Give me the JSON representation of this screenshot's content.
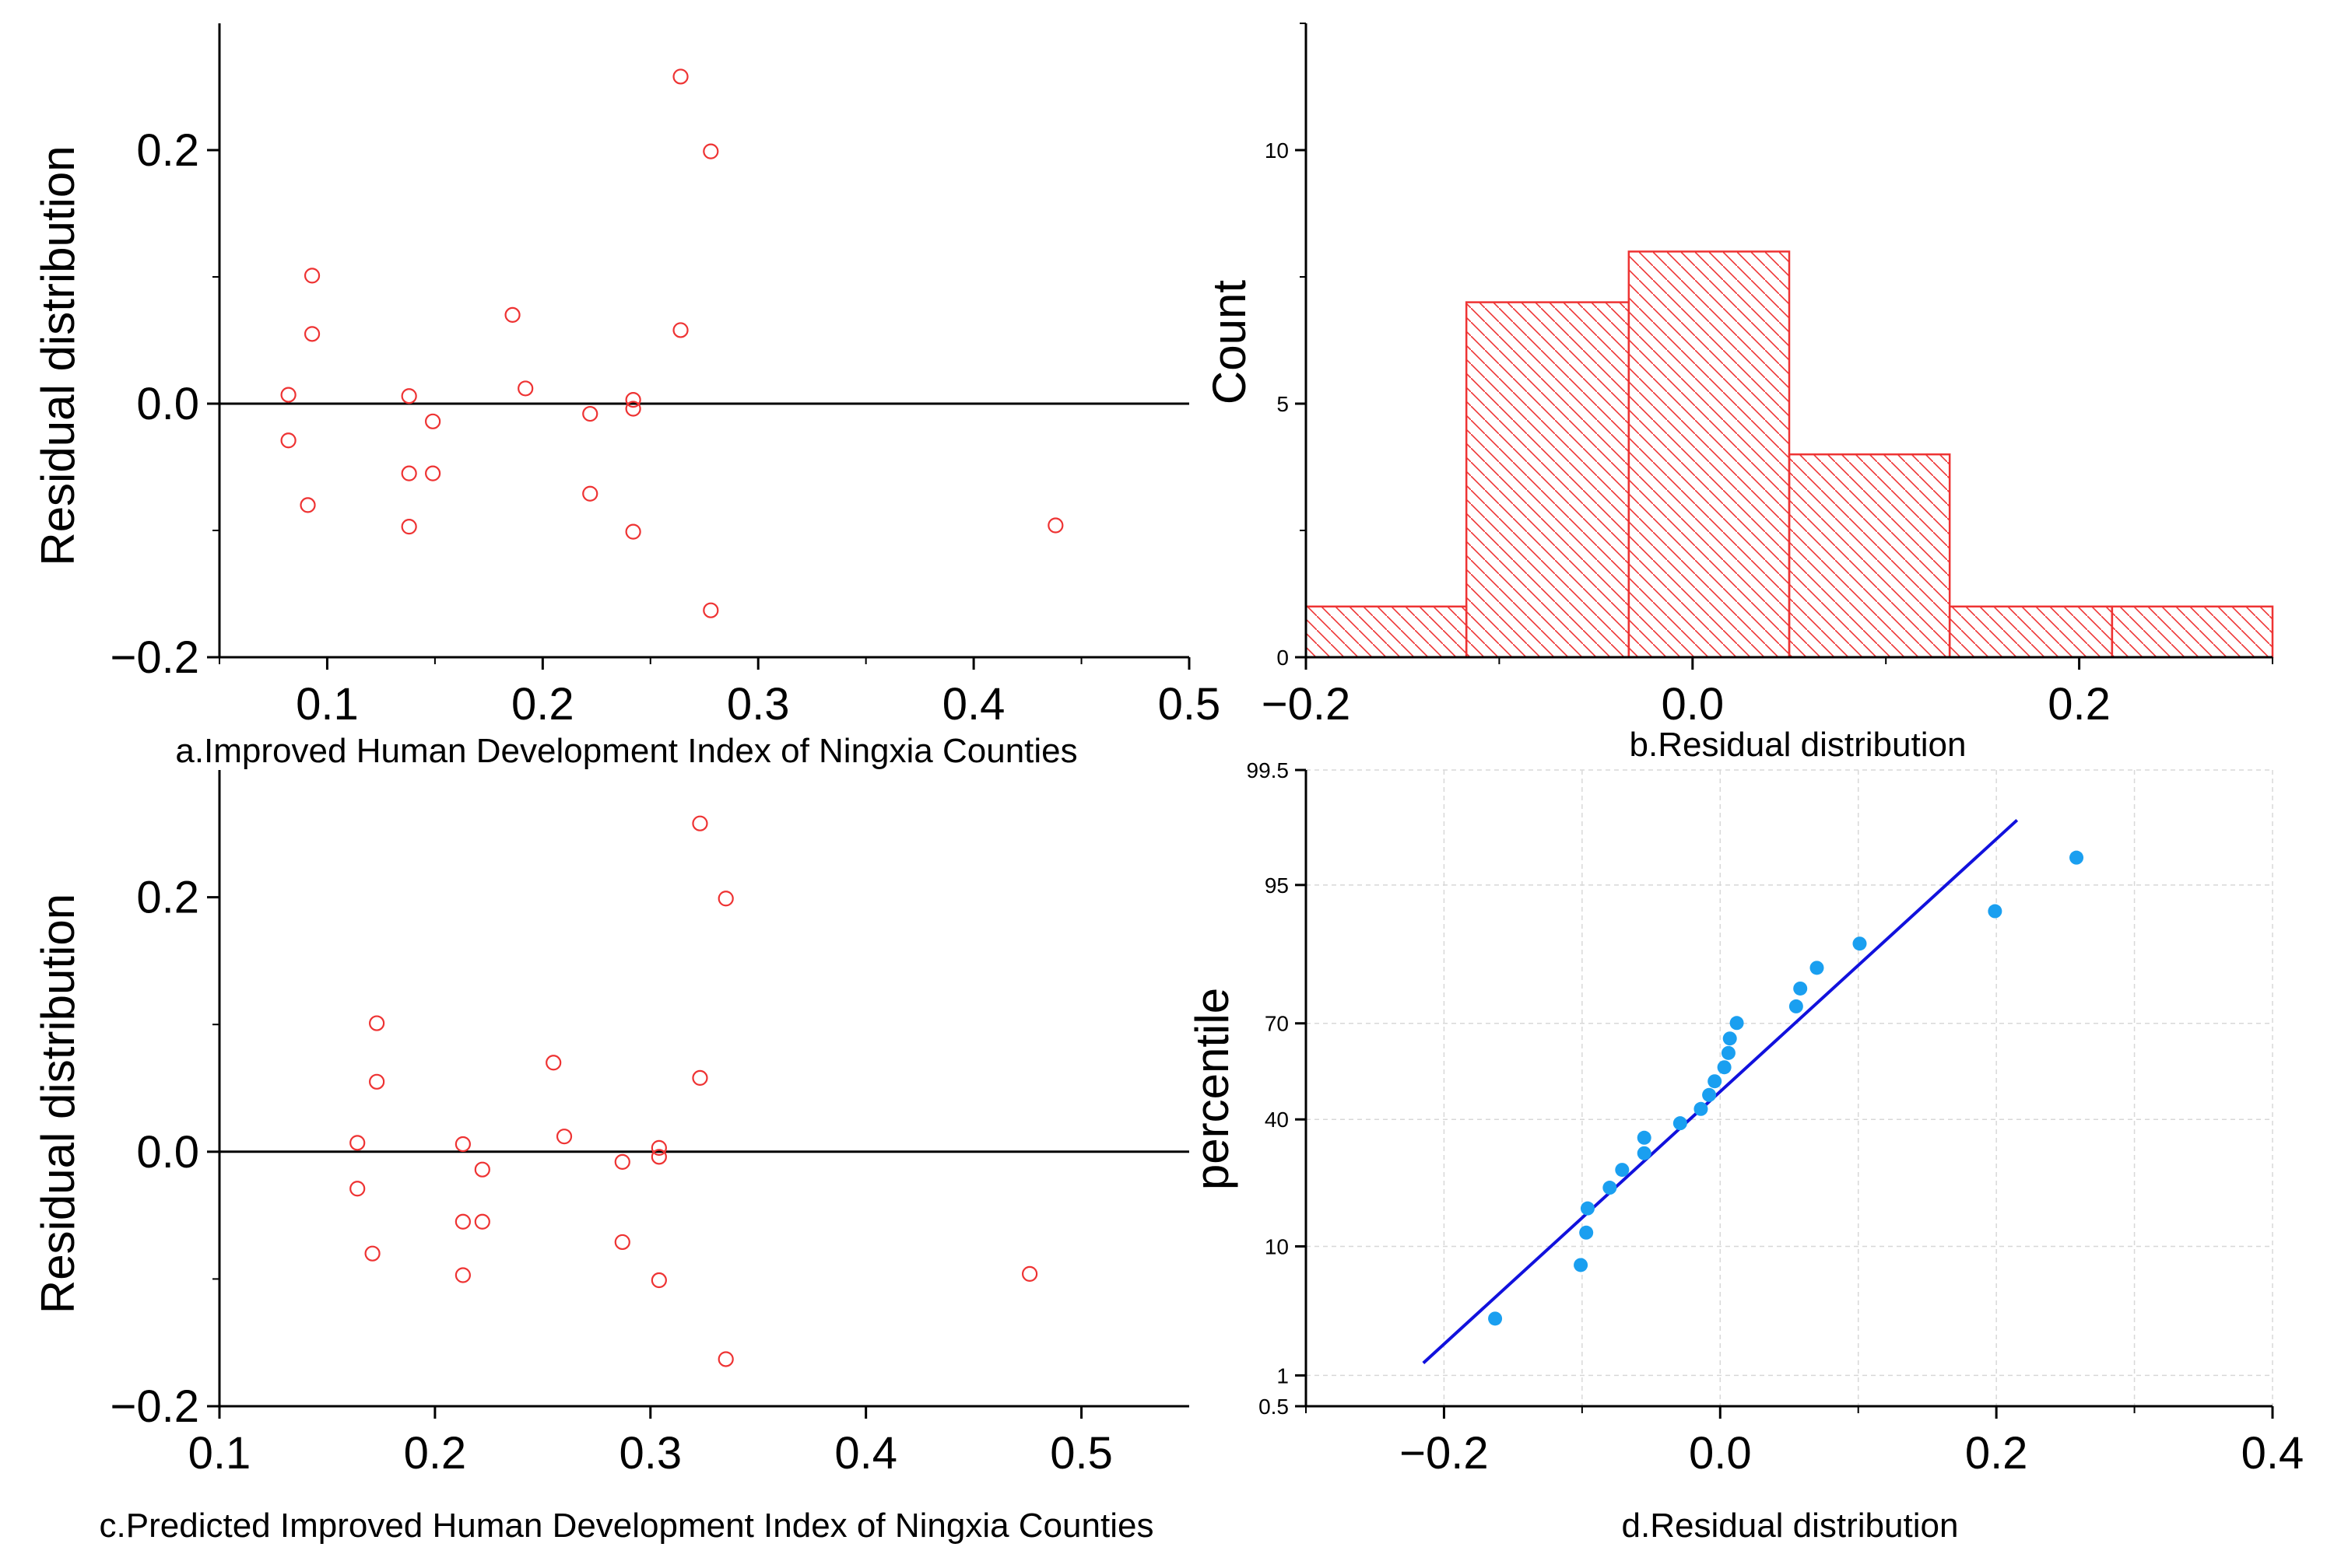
{
  "colors": {
    "scatter_marker": "#ee3333",
    "hist": "#ee3333",
    "qq_point": "#1a9ff0",
    "qq_line": "#1111dd",
    "grid": "#d8d8d8",
    "axis": "#000000"
  },
  "chart_data": [
    {
      "type": "scatter",
      "panel": "a",
      "caption": "a.Improved Human Development Index of Ningxia Counties",
      "xlabel": "a.Improved Human Development Index of Ningxia Counties",
      "ylabel": "Residual distribution",
      "xlim": [
        0.05,
        0.5
      ],
      "ylim": [
        -0.2,
        0.3
      ],
      "xticks": [
        0.1,
        0.2,
        0.3,
        0.4,
        0.5
      ],
      "xtick_labels": [
        "0.1",
        "0.2",
        "0.3",
        "0.4",
        "0.5"
      ],
      "yticks": [
        -0.2,
        0.0,
        0.2
      ],
      "ytick_labels": [
        "−0.2",
        "0.0",
        "0.2"
      ],
      "hline": 0,
      "marker": "open-circle",
      "points": [
        {
          "x": 0.082,
          "y": 0.007
        },
        {
          "x": 0.082,
          "y": -0.029
        },
        {
          "x": 0.091,
          "y": -0.08
        },
        {
          "x": 0.093,
          "y": 0.101
        },
        {
          "x": 0.093,
          "y": 0.055
        },
        {
          "x": 0.138,
          "y": 0.006
        },
        {
          "x": 0.138,
          "y": -0.055
        },
        {
          "x": 0.138,
          "y": -0.097
        },
        {
          "x": 0.149,
          "y": -0.014
        },
        {
          "x": 0.149,
          "y": -0.055
        },
        {
          "x": 0.186,
          "y": 0.07
        },
        {
          "x": 0.192,
          "y": 0.012
        },
        {
          "x": 0.222,
          "y": -0.008
        },
        {
          "x": 0.222,
          "y": -0.071
        },
        {
          "x": 0.242,
          "y": 0.003
        },
        {
          "x": 0.242,
          "y": -0.004
        },
        {
          "x": 0.242,
          "y": -0.101
        },
        {
          "x": 0.264,
          "y": 0.258
        },
        {
          "x": 0.264,
          "y": 0.058
        },
        {
          "x": 0.278,
          "y": 0.199
        },
        {
          "x": 0.278,
          "y": -0.163
        },
        {
          "x": 0.438,
          "y": -0.096
        }
      ]
    },
    {
      "type": "histogram",
      "panel": "b",
      "caption": "b.Residual distribution",
      "xlabel": "b.Residual distribution",
      "ylabel": "Count",
      "xlim": [
        -0.2,
        0.3
      ],
      "ylim": [
        0,
        12.5
      ],
      "xticks": [
        -0.2,
        0.0,
        0.2
      ],
      "xtick_labels": [
        "−0.2",
        "0.0",
        "0.2"
      ],
      "yticks": [
        0,
        5,
        10
      ],
      "ytick_labels": [
        "0",
        "5",
        "10"
      ],
      "bins": [
        {
          "x0": -0.2,
          "x1": -0.117,
          "count": 1
        },
        {
          "x0": -0.117,
          "x1": -0.033,
          "count": 7
        },
        {
          "x0": -0.033,
          "x1": 0.05,
          "count": 8
        },
        {
          "x0": 0.05,
          "x1": 0.133,
          "count": 4
        },
        {
          "x0": 0.133,
          "x1": 0.217,
          "count": 1
        },
        {
          "x0": 0.217,
          "x1": 0.3,
          "count": 1
        }
      ]
    },
    {
      "type": "scatter",
      "panel": "c",
      "caption": "c.Predicted Improved Human Development Index of Ningxia Counties",
      "xlabel": "c.Predicted Improved Human Development Index of Ningxia Counties",
      "ylabel": "Residual distribution",
      "xlim": [
        0.1,
        0.55
      ],
      "ylim": [
        -0.2,
        0.3
      ],
      "xticks": [
        0.1,
        0.2,
        0.3,
        0.4,
        0.5
      ],
      "xtick_labels": [
        "0.1",
        "0.2",
        "0.3",
        "0.4",
        "0.5"
      ],
      "yticks": [
        -0.2,
        0.0,
        0.2
      ],
      "ytick_labels": [
        "−0.2",
        "0.0",
        "0.2"
      ],
      "hline": 0,
      "marker": "open-circle",
      "points": [
        {
          "x": 0.164,
          "y": 0.007
        },
        {
          "x": 0.164,
          "y": -0.029
        },
        {
          "x": 0.171,
          "y": -0.08
        },
        {
          "x": 0.173,
          "y": 0.101
        },
        {
          "x": 0.173,
          "y": 0.055
        },
        {
          "x": 0.213,
          "y": 0.006
        },
        {
          "x": 0.213,
          "y": -0.055
        },
        {
          "x": 0.213,
          "y": -0.097
        },
        {
          "x": 0.222,
          "y": -0.014
        },
        {
          "x": 0.222,
          "y": -0.055
        },
        {
          "x": 0.255,
          "y": 0.07
        },
        {
          "x": 0.26,
          "y": 0.012
        },
        {
          "x": 0.287,
          "y": -0.008
        },
        {
          "x": 0.287,
          "y": -0.071
        },
        {
          "x": 0.304,
          "y": 0.003
        },
        {
          "x": 0.304,
          "y": -0.004
        },
        {
          "x": 0.304,
          "y": -0.101
        },
        {
          "x": 0.323,
          "y": 0.258
        },
        {
          "x": 0.323,
          "y": 0.058
        },
        {
          "x": 0.335,
          "y": 0.199
        },
        {
          "x": 0.335,
          "y": -0.163
        },
        {
          "x": 0.476,
          "y": -0.096
        }
      ]
    },
    {
      "type": "scatter",
      "subtype": "normal-probability",
      "panel": "d",
      "caption": "d.Residual distribution",
      "xlabel": "d.Residual distribution",
      "ylabel": "percentile",
      "xlim": [
        -0.3,
        0.4
      ],
      "ylim_percentile": [
        0.5,
        99.5
      ],
      "xticks": [
        -0.2,
        0.0,
        0.2,
        0.4
      ],
      "xtick_labels": [
        "−0.2",
        "0.0",
        "0.2",
        "0.4"
      ],
      "yticks": [
        0.5,
        1,
        10,
        40,
        70,
        95,
        99.5
      ],
      "ytick_labels": [
        "0.5",
        "1",
        "10",
        "40",
        "70",
        "95",
        "99.5"
      ],
      "grid": true,
      "reference_line": {
        "x0": -0.215,
        "p0": 1.3,
        "x1": 0.215,
        "p1": 98.5
      },
      "points": [
        {
          "x": -0.163,
          "p": 3.1
        },
        {
          "x": -0.101,
          "p": 7.6
        },
        {
          "x": -0.097,
          "p": 12.1
        },
        {
          "x": -0.096,
          "p": 16.5
        },
        {
          "x": -0.08,
          "p": 21.0
        },
        {
          "x": -0.071,
          "p": 25.4
        },
        {
          "x": -0.055,
          "p": 29.9
        },
        {
          "x": -0.055,
          "p": 34.4
        },
        {
          "x": -0.029,
          "p": 38.8
        },
        {
          "x": -0.014,
          "p": 43.3
        },
        {
          "x": -0.008,
          "p": 47.8
        },
        {
          "x": -0.004,
          "p": 52.2
        },
        {
          "x": 0.003,
          "p": 56.7
        },
        {
          "x": 0.006,
          "p": 61.2
        },
        {
          "x": 0.007,
          "p": 65.6
        },
        {
          "x": 0.012,
          "p": 70.1
        },
        {
          "x": 0.055,
          "p": 74.6
        },
        {
          "x": 0.058,
          "p": 79.0
        },
        {
          "x": 0.07,
          "p": 83.5
        },
        {
          "x": 0.101,
          "p": 87.9
        },
        {
          "x": 0.199,
          "p": 92.4
        },
        {
          "x": 0.258,
          "p": 96.9
        }
      ]
    }
  ]
}
